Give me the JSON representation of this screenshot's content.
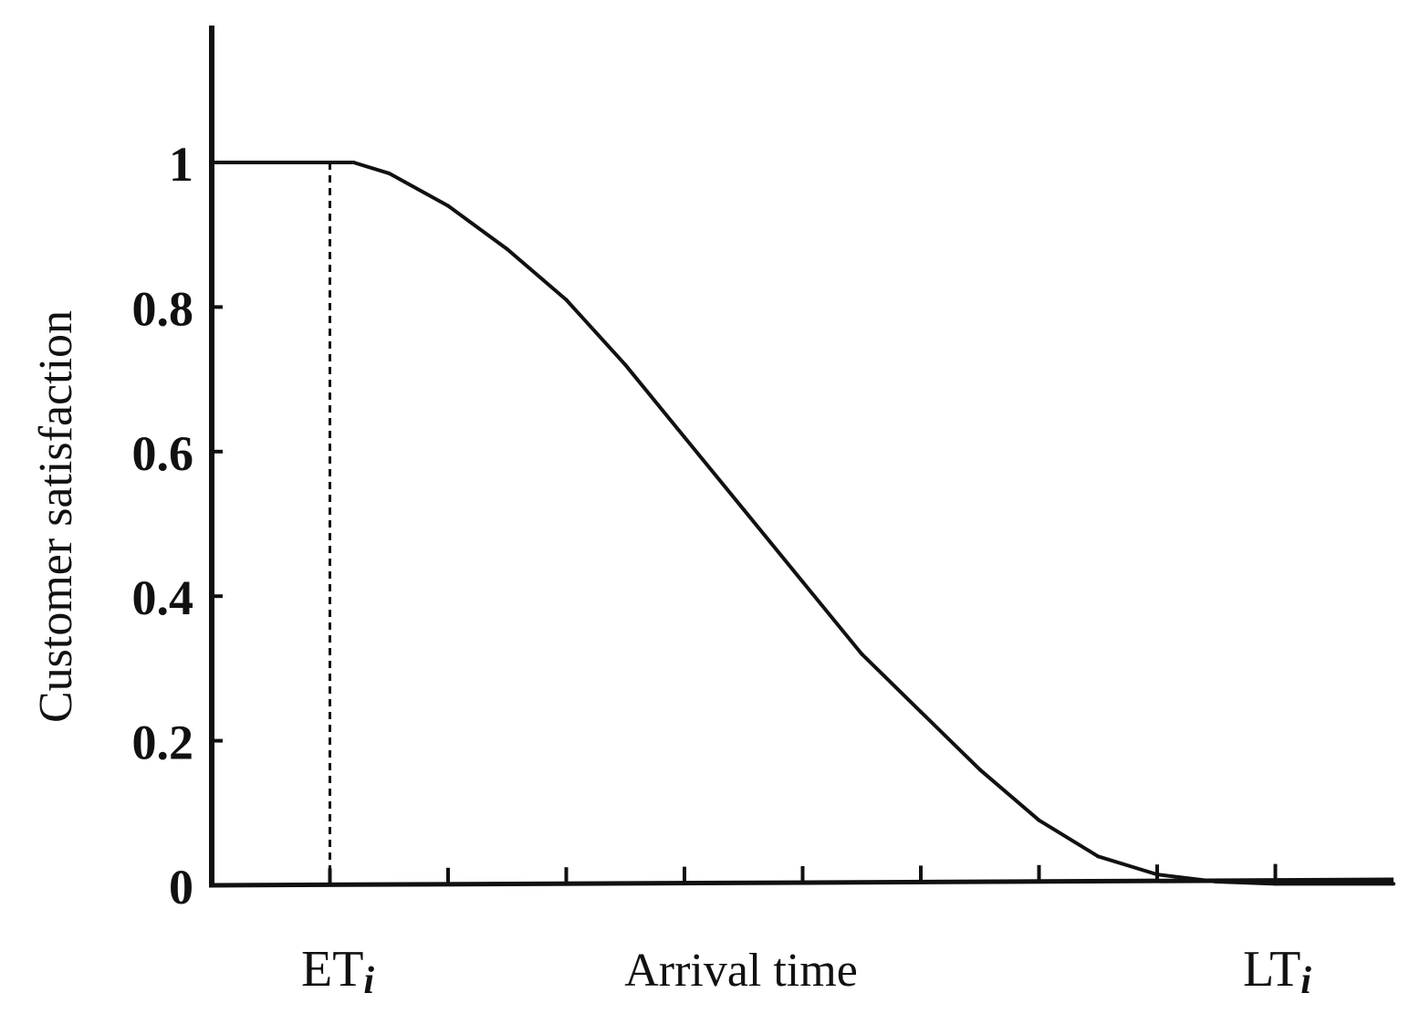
{
  "chart_data": {
    "type": "line",
    "title": "",
    "xlabel": "Arrival time",
    "ylabel": "Customer satisfaction",
    "ylim": [
      0,
      1.2
    ],
    "xlim": [
      0,
      10
    ],
    "y_ticks": [
      "0",
      "0.2",
      "0.4",
      "0.6",
      "0.8",
      "1"
    ],
    "y_tick_values": [
      0,
      0.2,
      0.4,
      0.6,
      0.8,
      1
    ],
    "x_tick_values": [
      1,
      2,
      3,
      4,
      5,
      6,
      7,
      8,
      9
    ],
    "grid": false,
    "markers": [
      {
        "label": "ET",
        "subscript": "i",
        "x": 1,
        "line": "dashed"
      },
      {
        "label": "LT",
        "subscript": "i",
        "x": 9
      }
    ],
    "series": [
      {
        "x": [
          0,
          1,
          1.2,
          1.5,
          2,
          2.5,
          3,
          3.5,
          4,
          4.5,
          5,
          5.5,
          6,
          6.5,
          7,
          7.5,
          8,
          8.5,
          9,
          10
        ],
        "y": [
          1,
          1,
          1,
          0.985,
          0.94,
          0.88,
          0.81,
          0.72,
          0.62,
          0.52,
          0.42,
          0.32,
          0.24,
          0.16,
          0.09,
          0.04,
          0.015,
          0.005,
          0.002,
          0.002
        ]
      }
    ]
  }
}
